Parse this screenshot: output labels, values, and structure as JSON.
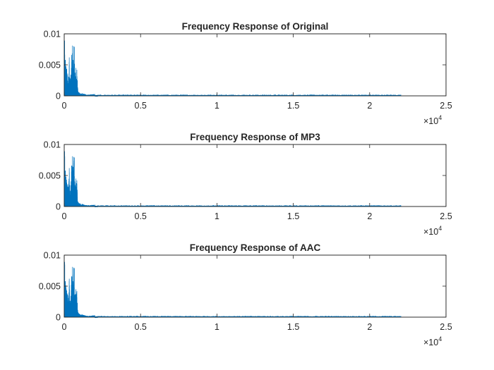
{
  "figure": {
    "background": "#ffffff",
    "axis_color": "#262626",
    "series_color": "#0072BD"
  },
  "chart_data": [
    {
      "type": "line",
      "title": "Frequency Response of Original",
      "xlabel": "",
      "ylabel": "",
      "xlim": [
        0,
        25000
      ],
      "ylim": [
        0,
        0.01
      ],
      "x_ticks": [
        0,
        5000,
        10000,
        15000,
        20000,
        25000
      ],
      "x_tick_labels": [
        "0",
        "0.5",
        "1",
        "1.5",
        "2",
        "2.5"
      ],
      "x_exponent_base": "×10",
      "x_exponent_power": "4",
      "y_ticks": [
        0,
        0.005,
        0.01
      ],
      "y_tick_labels": [
        "0",
        "0.005",
        "0.01"
      ],
      "grid": false,
      "x_data_range": [
        0,
        22050
      ],
      "peaks": [
        {
          "x": 30,
          "y": 0.0089
        },
        {
          "x": 80,
          "y": 0.0058
        },
        {
          "x": 120,
          "y": 0.0048
        },
        {
          "x": 170,
          "y": 0.0043
        },
        {
          "x": 230,
          "y": 0.0036
        },
        {
          "x": 280,
          "y": 0.0031
        },
        {
          "x": 330,
          "y": 0.0062
        },
        {
          "x": 380,
          "y": 0.0025
        },
        {
          "x": 430,
          "y": 0.0034
        },
        {
          "x": 480,
          "y": 0.0066
        },
        {
          "x": 540,
          "y": 0.0081
        },
        {
          "x": 580,
          "y": 0.0058
        },
        {
          "x": 620,
          "y": 0.008
        },
        {
          "x": 660,
          "y": 0.0079
        },
        {
          "x": 700,
          "y": 0.0036
        },
        {
          "x": 760,
          "y": 0.0045
        },
        {
          "x": 830,
          "y": 0.0042
        },
        {
          "x": 900,
          "y": 0.0008
        },
        {
          "x": 1000,
          "y": 0.0005
        },
        {
          "x": 1200,
          "y": 0.0004
        },
        {
          "x": 1500,
          "y": 0.0002
        },
        {
          "x": 2000,
          "y": 0.0003
        }
      ]
    },
    {
      "type": "line",
      "title": "Frequency Response of MP3",
      "xlabel": "",
      "ylabel": "",
      "xlim": [
        0,
        25000
      ],
      "ylim": [
        0,
        0.01
      ],
      "x_ticks": [
        0,
        5000,
        10000,
        15000,
        20000,
        25000
      ],
      "x_tick_labels": [
        "0",
        "0.5",
        "1",
        "1.5",
        "2",
        "2.5"
      ],
      "x_exponent_base": "×10",
      "x_exponent_power": "4",
      "y_ticks": [
        0,
        0.005,
        0.01
      ],
      "y_tick_labels": [
        "0",
        "0.005",
        "0.01"
      ],
      "grid": false,
      "x_data_range": [
        0,
        22050
      ],
      "peaks": [
        {
          "x": 30,
          "y": 0.0089
        },
        {
          "x": 80,
          "y": 0.0058
        },
        {
          "x": 120,
          "y": 0.0048
        },
        {
          "x": 170,
          "y": 0.0043
        },
        {
          "x": 230,
          "y": 0.0036
        },
        {
          "x": 280,
          "y": 0.0031
        },
        {
          "x": 330,
          "y": 0.0062
        },
        {
          "x": 380,
          "y": 0.0025
        },
        {
          "x": 430,
          "y": 0.0034
        },
        {
          "x": 480,
          "y": 0.0066
        },
        {
          "x": 540,
          "y": 0.0081
        },
        {
          "x": 580,
          "y": 0.0058
        },
        {
          "x": 620,
          "y": 0.008
        },
        {
          "x": 660,
          "y": 0.0079
        },
        {
          "x": 700,
          "y": 0.0036
        },
        {
          "x": 760,
          "y": 0.0045
        },
        {
          "x": 830,
          "y": 0.0042
        },
        {
          "x": 900,
          "y": 0.0008
        },
        {
          "x": 1000,
          "y": 0.0005
        },
        {
          "x": 1200,
          "y": 0.0004
        },
        {
          "x": 1500,
          "y": 0.0002
        },
        {
          "x": 2000,
          "y": 0.0003
        }
      ]
    },
    {
      "type": "line",
      "title": "Frequency Response of AAC",
      "xlabel": "",
      "ylabel": "",
      "xlim": [
        0,
        25000
      ],
      "ylim": [
        0,
        0.01
      ],
      "x_ticks": [
        0,
        5000,
        10000,
        15000,
        20000,
        25000
      ],
      "x_tick_labels": [
        "0",
        "0.5",
        "1",
        "1.5",
        "2",
        "2.5"
      ],
      "x_exponent_base": "×10",
      "x_exponent_power": "4",
      "y_ticks": [
        0,
        0.005,
        0.01
      ],
      "y_tick_labels": [
        "0",
        "0.005",
        "0.01"
      ],
      "grid": false,
      "x_data_range": [
        0,
        22050
      ],
      "peaks": [
        {
          "x": 30,
          "y": 0.0089
        },
        {
          "x": 80,
          "y": 0.0058
        },
        {
          "x": 120,
          "y": 0.0048
        },
        {
          "x": 170,
          "y": 0.0043
        },
        {
          "x": 230,
          "y": 0.0036
        },
        {
          "x": 280,
          "y": 0.0031
        },
        {
          "x": 330,
          "y": 0.0062
        },
        {
          "x": 380,
          "y": 0.0025
        },
        {
          "x": 430,
          "y": 0.0034
        },
        {
          "x": 480,
          "y": 0.0066
        },
        {
          "x": 540,
          "y": 0.0081
        },
        {
          "x": 580,
          "y": 0.0058
        },
        {
          "x": 620,
          "y": 0.008
        },
        {
          "x": 660,
          "y": 0.0079
        },
        {
          "x": 700,
          "y": 0.0036
        },
        {
          "x": 760,
          "y": 0.0045
        },
        {
          "x": 830,
          "y": 0.0042
        },
        {
          "x": 900,
          "y": 0.0008
        },
        {
          "x": 1000,
          "y": 0.0005
        },
        {
          "x": 1200,
          "y": 0.0004
        },
        {
          "x": 1500,
          "y": 0.0002
        },
        {
          "x": 2000,
          "y": 0.0003
        }
      ]
    }
  ]
}
